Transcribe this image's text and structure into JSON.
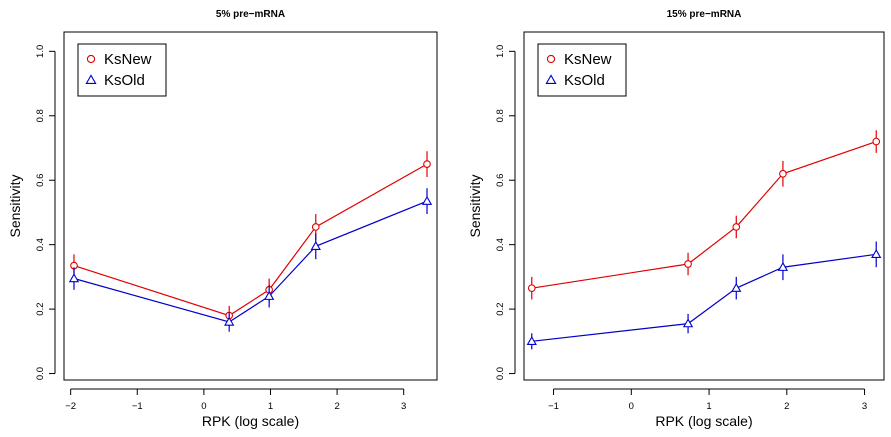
{
  "chart_data": [
    {
      "type": "line",
      "title": "5% pre−mRNA",
      "xlabel": "RPK (log scale)",
      "ylabel": "Sensitivity",
      "xlim": [
        -2.1,
        3.5
      ],
      "ylim": [
        -0.02,
        1.06
      ],
      "xticks": [
        -2,
        -1,
        0,
        1,
        2,
        3
      ],
      "xtick_labels": [
        "−2",
        "−1",
        "0",
        "1",
        "2",
        "3"
      ],
      "yticks": [
        0.0,
        0.2,
        0.4,
        0.6,
        0.8,
        1.0
      ],
      "ytick_labels": [
        "0.0",
        "0.2",
        "0.4",
        "0.6",
        "0.8",
        "1.0"
      ],
      "legend_position": "top-left",
      "grid": false,
      "series": [
        {
          "name": "KsNew",
          "color": "#e00000",
          "marker": "circle",
          "x": [
            -1.95,
            0.38,
            0.98,
            1.68,
            3.35
          ],
          "y": [
            0.335,
            0.18,
            0.26,
            0.455,
            0.65
          ],
          "err": [
            0.035,
            0.03,
            0.035,
            0.04,
            0.04
          ]
        },
        {
          "name": "KsOld",
          "color": "#0000cc",
          "marker": "triangle",
          "x": [
            -1.95,
            0.38,
            0.98,
            1.68,
            3.35
          ],
          "y": [
            0.295,
            0.16,
            0.24,
            0.395,
            0.535
          ],
          "err": [
            0.035,
            0.03,
            0.035,
            0.04,
            0.04
          ]
        }
      ]
    },
    {
      "type": "line",
      "title": "15% pre−mRNA",
      "xlabel": "RPK (log scale)",
      "ylabel": "Sensitivity",
      "xlim": [
        -1.38,
        3.25
      ],
      "ylim": [
        -0.02,
        1.06
      ],
      "xticks": [
        -1,
        0,
        1,
        2,
        3
      ],
      "xtick_labels": [
        "−1",
        "0",
        "1",
        "2",
        "3"
      ],
      "yticks": [
        0.0,
        0.2,
        0.4,
        0.6,
        0.8,
        1.0
      ],
      "ytick_labels": [
        "0.0",
        "0.2",
        "0.4",
        "0.6",
        "0.8",
        "1.0"
      ],
      "legend_position": "top-left",
      "grid": false,
      "series": [
        {
          "name": "KsNew",
          "color": "#e00000",
          "marker": "circle",
          "x": [
            -1.28,
            0.73,
            1.35,
            1.95,
            3.15
          ],
          "y": [
            0.265,
            0.34,
            0.455,
            0.62,
            0.72
          ],
          "err": [
            0.035,
            0.035,
            0.035,
            0.04,
            0.035
          ]
        },
        {
          "name": "KsOld",
          "color": "#0000cc",
          "marker": "triangle",
          "x": [
            -1.28,
            0.73,
            1.35,
            1.95,
            3.15
          ],
          "y": [
            0.1,
            0.155,
            0.265,
            0.33,
            0.37
          ],
          "err": [
            0.025,
            0.03,
            0.035,
            0.04,
            0.04
          ]
        }
      ]
    }
  ]
}
